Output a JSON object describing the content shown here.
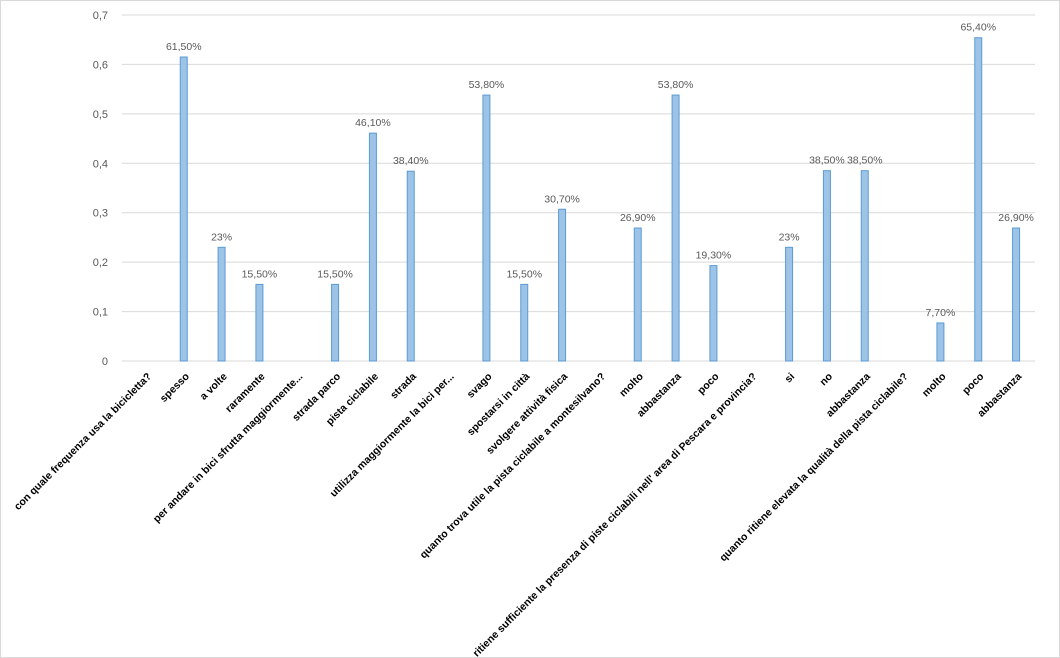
{
  "chart_data": {
    "type": "bar",
    "title": "",
    "xlabel": "",
    "ylabel": "",
    "ylim": [
      0,
      0.7
    ],
    "yticks": [
      "0",
      "0,1",
      "0,2",
      "0,3",
      "0,4",
      "0,5",
      "0,6",
      "0,7"
    ],
    "ytick_values": [
      0,
      0.1,
      0.2,
      0.3,
      0.4,
      0.5,
      0.6,
      0.7
    ],
    "grid": true,
    "legend": "none",
    "bar_color": "#9dc3e6",
    "bar_edge_color": "#5b9bd5",
    "categories": [
      "con quale frequenza usa la bicicletta?",
      "spesso",
      "a volte",
      "raramente",
      "per andare in bici sfrutta maggiormente...",
      "strada parco",
      "pista ciclabile",
      "strada",
      "utilizza maggiormente la bici per...",
      "svago",
      "spostarsi in città",
      "svolgere attività fisica",
      "quanto trova utile la pista ciclabile a montesilvano?",
      "molto",
      "abbastanza",
      "poco",
      "ritiene sufficiente la presenza di piste ciclabili nell' area di Pescara e provincia?",
      "si",
      "no",
      "abbastanza",
      "quanto ritiene elevata la qualità della pista ciclabile?",
      "molto",
      "poco",
      "abbastanza"
    ],
    "values": [
      null,
      0.615,
      0.23,
      0.155,
      null,
      0.155,
      0.461,
      0.384,
      null,
      0.538,
      0.155,
      0.307,
      null,
      0.269,
      0.538,
      0.193,
      null,
      0.23,
      0.385,
      0.385,
      null,
      0.077,
      0.654,
      0.269
    ],
    "data_labels": [
      "",
      "61,50%",
      "23%",
      "15,50%",
      "",
      "15,50%",
      "46,10%",
      "38,40%",
      "",
      "53,80%",
      "15,50%",
      "30,70%",
      "",
      "26,90%",
      "53,80%",
      "19,30%",
      "",
      "23%",
      "38,50%",
      "38,50%",
      "",
      "7,70%",
      "65,40%",
      "26,90%"
    ]
  }
}
